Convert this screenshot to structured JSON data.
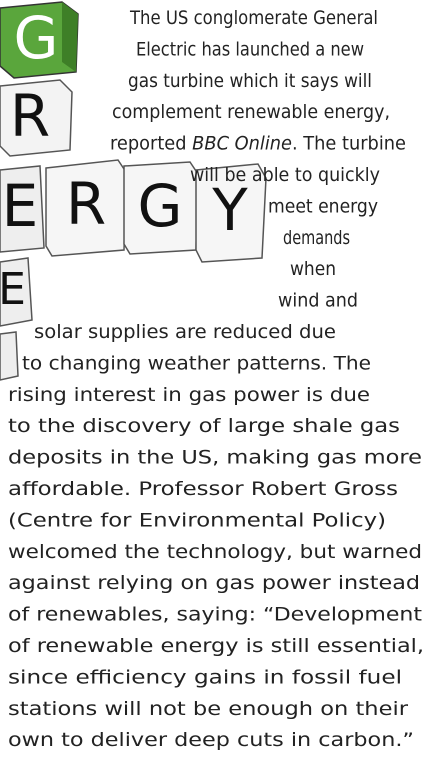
{
  "image_letters": [
    "G",
    "R",
    "E",
    "R",
    "G",
    "Y",
    "E"
  ],
  "article": {
    "lines": [
      "The US conglomerate General",
      "Electric has launched a new",
      "gas turbine which it says will",
      "complement renewable energy,",
      [
        "reported ",
        "BBC Online",
        ". The turbine"
      ],
      "will be able to quickly",
      "meet energy",
      "demands",
      "when",
      "wind and",
      "solar supplies are reduced due",
      "to changing weather patterns. The",
      "rising interest in gas power is due",
      "to the discovery of large shale gas",
      "deposits in the US, making gas more",
      "affordable. Professor Robert Gross",
      "(Centre for Environmental Policy)",
      "welcomed the technology, but warned",
      "against relying on gas power instead",
      "of renewables, saying: “Development",
      "of renewable energy is still essential,",
      "since efficiency gains in fossil fuel",
      "stations will not be enough on their",
      "own to deliver deep cuts in carbon.”"
    ]
  }
}
